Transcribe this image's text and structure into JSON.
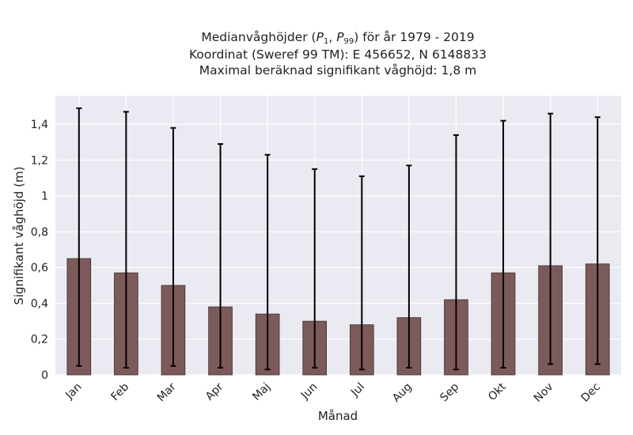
{
  "chart_data": {
    "type": "bar",
    "title": {
      "line1_prefix": "Medianvåghöjder (",
      "line1_p1": "P",
      "line1_p1_sub": "1",
      "line1_sep": ", ",
      "line1_p99": "P",
      "line1_p99_sub": "99",
      "line1_suffix": ") för år 1979 - 2019",
      "line2": "Koordinat (Sweref 99 TM): E 456652, N 6148833",
      "line3": "Maximal beräknad signifikant våghöjd: 1,8 m"
    },
    "xlabel": "Månad",
    "ylabel": "Signifikant våghöjd (m)",
    "categories": [
      "Jan",
      "Feb",
      "Mar",
      "Apr",
      "Maj",
      "Jun",
      "Jul",
      "Aug",
      "Sep",
      "Okt",
      "Nov",
      "Dec"
    ],
    "values": [
      0.65,
      0.57,
      0.5,
      0.38,
      0.34,
      0.3,
      0.28,
      0.32,
      0.42,
      0.57,
      0.61,
      0.62
    ],
    "p1": [
      0.05,
      0.04,
      0.05,
      0.04,
      0.03,
      0.04,
      0.03,
      0.04,
      0.03,
      0.04,
      0.06,
      0.06
    ],
    "p99": [
      1.49,
      1.47,
      1.38,
      1.29,
      1.23,
      1.15,
      1.11,
      1.17,
      1.34,
      1.42,
      1.46,
      1.44
    ],
    "yticks": [
      0,
      0.2,
      0.4,
      0.6,
      0.8,
      1,
      1.2,
      1.4
    ],
    "ytick_labels": [
      "0",
      "0,2",
      "0,4",
      "0,6",
      "0,8",
      "1",
      "1,2",
      "1,4"
    ],
    "ylim": [
      0,
      1.56
    ],
    "grid": true,
    "colors": {
      "bar": "#7d5a5a",
      "bar_edge": "#3a2c2c",
      "errorbar": "#000000",
      "plot_background": "#eaeaf2",
      "grid": "#ffffff"
    }
  }
}
